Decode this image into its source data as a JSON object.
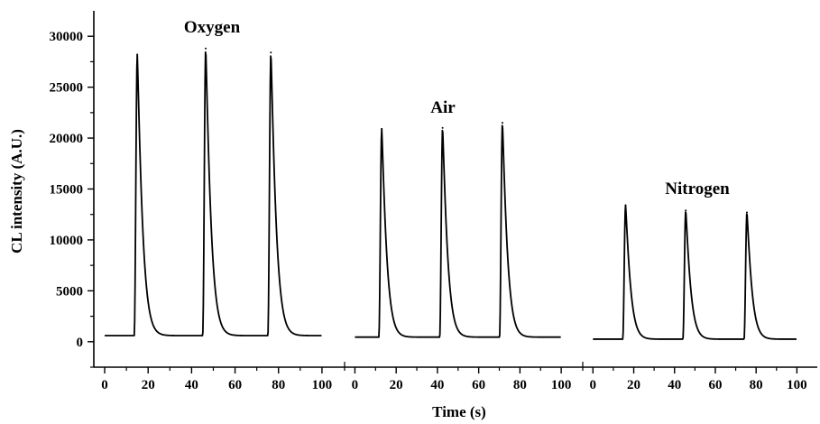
{
  "chart_data": {
    "type": "line",
    "xlabel": "Time (s)",
    "ylabel": "CL intensity (A.U.)",
    "ylim": [
      -2500,
      32500
    ],
    "yticks": [
      0,
      5000,
      10000,
      15000,
      20000,
      25000,
      30000
    ],
    "xticks": [
      0,
      20,
      40,
      60,
      80,
      100
    ],
    "grid": false,
    "panels": [
      {
        "name": "Oxygen",
        "xlim": [
          -5,
          110
        ],
        "baseline": 600,
        "peaks": [
          {
            "x": 15,
            "y": 28200
          },
          {
            "x": 46.5,
            "y": 28800
          },
          {
            "x": 76.5,
            "y": 28400
          }
        ]
      },
      {
        "name": "Air",
        "xlim": [
          -5,
          110
        ],
        "baseline": 450,
        "peaks": [
          {
            "x": 13,
            "y": 20900
          },
          {
            "x": 42.5,
            "y": 21000
          },
          {
            "x": 71.5,
            "y": 21500
          }
        ]
      },
      {
        "name": "Nitrogen",
        "xlim": [
          -5,
          110
        ],
        "baseline": 250,
        "peaks": [
          {
            "x": 16,
            "y": 13400
          },
          {
            "x": 45.5,
            "y": 12900
          },
          {
            "x": 75.5,
            "y": 12700
          }
        ]
      }
    ]
  }
}
